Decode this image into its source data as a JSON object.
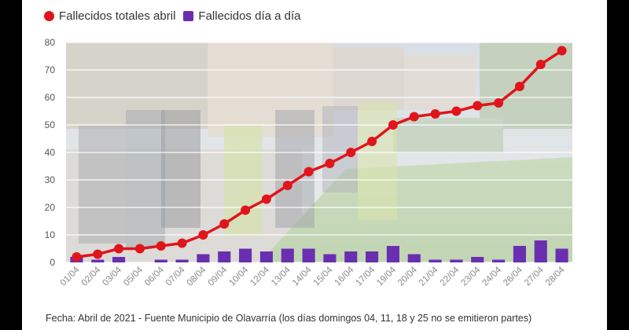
{
  "legend": {
    "line_label": "Fallecidos totales abril",
    "bar_label": "Fallecidos día a día"
  },
  "footnote": "Fecha: Abril de 2021 - Fuente Municipio de Olavarría (los días domingos 04, 11, 18 y 25 no se emitieron partes)",
  "colors": {
    "line": "#e0151b",
    "bar": "#6a2fb0",
    "grid": "#ffffff",
    "tick_text": "#555555",
    "x_tick_text": "#8a8a8a"
  },
  "chart_data": {
    "type": "bar",
    "categories": [
      "01/04",
      "02/04",
      "03/04",
      "05/04",
      "06/04",
      "07/04",
      "08/04",
      "09/04",
      "10/04",
      "12/04",
      "13/04",
      "14/04",
      "15/04",
      "16/04",
      "17/04",
      "19/04",
      "20/04",
      "21/04",
      "22/04",
      "23/04",
      "24/04",
      "26/04",
      "27/04",
      "28/04"
    ],
    "series": [
      {
        "name": "Fallecidos totales abril",
        "type": "line",
        "values": [
          2,
          3,
          5,
          5,
          6,
          7,
          10,
          14,
          19,
          23,
          28,
          33,
          36,
          40,
          44,
          50,
          53,
          54,
          55,
          57,
          58,
          64,
          72,
          77
        ]
      },
      {
        "name": "Fallecidos día a día",
        "type": "bar",
        "values": [
          2,
          1,
          2,
          0,
          1,
          1,
          3,
          4,
          5,
          4,
          5,
          5,
          3,
          4,
          4,
          6,
          3,
          1,
          1,
          2,
          1,
          6,
          8,
          5
        ]
      }
    ],
    "yticks": [
      0,
      10,
      20,
      30,
      40,
      50,
      60,
      70,
      80
    ],
    "ylim": [
      0,
      80
    ],
    "grid": true,
    "legend_position": "top-left",
    "xlabel": "",
    "ylabel": ""
  }
}
